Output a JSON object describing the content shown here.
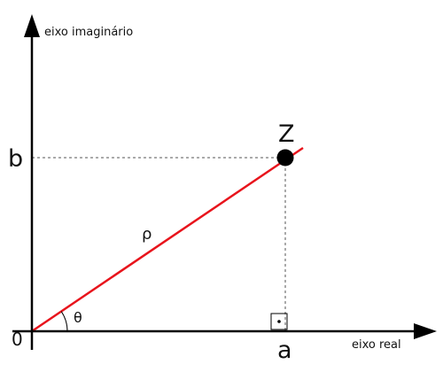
{
  "axes": {
    "imaginary_label": "eixo  imaginário",
    "real_label": "eixo  real",
    "origin_label": "0"
  },
  "point": {
    "label": "Z",
    "real_label": "a",
    "imag_label": "b"
  },
  "vector": {
    "modulus_label": "ρ",
    "angle_label": "θ"
  },
  "colors": {
    "vector": "#e8141c",
    "axes": "#000000",
    "guides": "#555555"
  }
}
